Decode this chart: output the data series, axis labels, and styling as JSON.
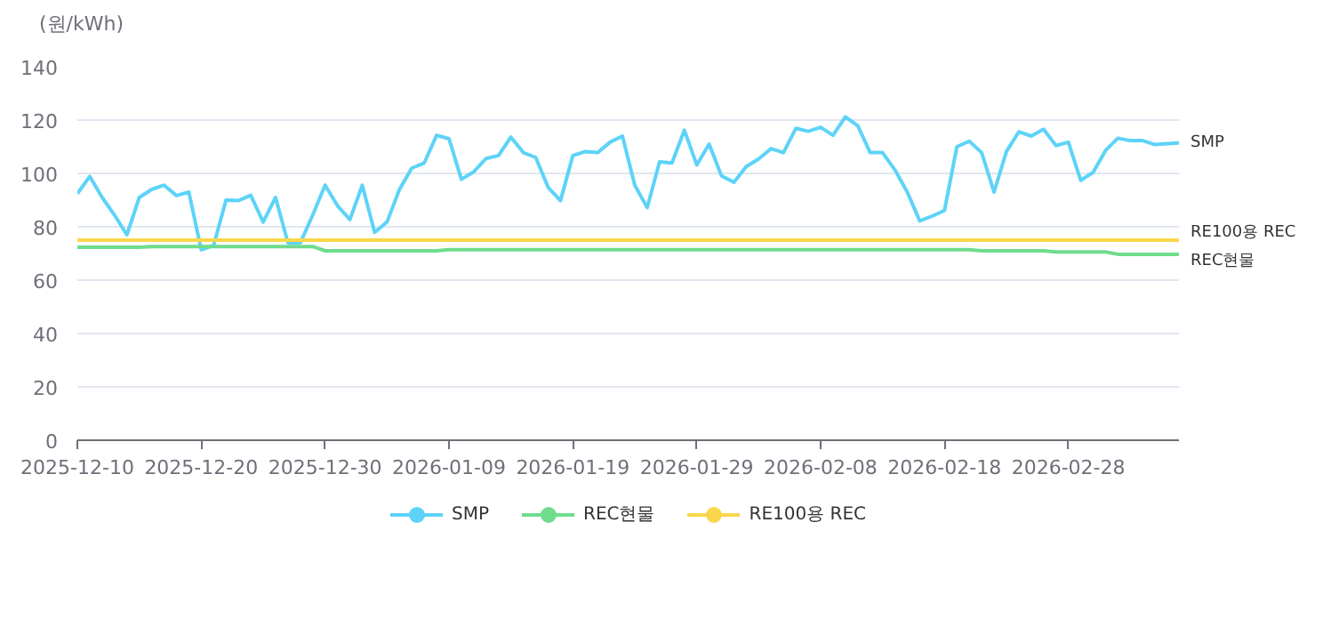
{
  "chart_data": {
    "type": "line",
    "ylabel": "(원/kWh)",
    "x": [
      "2025-12-10",
      "2025-12-11",
      "2025-12-12",
      "2025-12-13",
      "2025-12-14",
      "2025-12-15",
      "2025-12-16",
      "2025-12-17",
      "2025-12-18",
      "2025-12-19",
      "2025-12-20",
      "2025-12-21",
      "2025-12-22",
      "2025-12-23",
      "2025-12-24",
      "2025-12-25",
      "2025-12-26",
      "2025-12-27",
      "2025-12-28",
      "2025-12-29",
      "2025-12-30",
      "2025-12-31",
      "2026-01-01",
      "2026-01-02",
      "2026-01-03",
      "2026-01-04",
      "2026-01-05",
      "2026-01-06",
      "2026-01-07",
      "2026-01-08",
      "2026-01-09",
      "2026-01-10",
      "2026-01-11",
      "2026-01-12",
      "2026-01-13",
      "2026-01-14",
      "2026-01-15",
      "2026-01-16",
      "2026-01-17",
      "2026-01-18",
      "2026-01-19",
      "2026-01-20",
      "2026-01-21",
      "2026-01-22",
      "2026-01-23",
      "2026-01-24",
      "2026-01-25",
      "2026-01-26",
      "2026-01-27",
      "2026-01-28",
      "2026-01-29",
      "2026-01-30",
      "2026-01-31",
      "2026-02-01",
      "2026-02-02",
      "2026-02-03",
      "2026-02-04",
      "2026-02-05",
      "2026-02-06",
      "2026-02-07",
      "2026-02-08",
      "2026-02-09",
      "2026-02-10",
      "2026-02-11",
      "2026-02-12",
      "2026-02-13",
      "2026-02-14",
      "2026-02-15",
      "2026-02-16",
      "2026-02-17",
      "2026-02-18",
      "2026-02-19",
      "2026-02-20",
      "2026-02-21",
      "2026-02-22",
      "2026-02-23",
      "2026-02-24",
      "2026-02-25",
      "2026-02-26",
      "2026-02-27",
      "2026-02-28",
      "2026-03-01",
      "2026-03-02",
      "2026-03-03",
      "2026-03-04",
      "2026-03-05",
      "2026-03-06",
      "2026-03-07",
      "2026-03-08",
      "2026-03-09"
    ],
    "series": [
      {
        "name": "SMP",
        "color": "#5dd3f8",
        "values": [
          92.4,
          98.9,
          91,
          84.4,
          77,
          91,
          94,
          95.6,
          91.7,
          93,
          71.4,
          73,
          90,
          89.8,
          91.8,
          81.8,
          91,
          74,
          74,
          84.4,
          95.6,
          87.9,
          82.7,
          95.6,
          77.9,
          81.8,
          94,
          102,
          103.9,
          114.3,
          113,
          97.8,
          100.6,
          105.6,
          106.7,
          113.6,
          107.8,
          106,
          94.8,
          89.8,
          106.7,
          108.2,
          107.8,
          111.7,
          114,
          95.6,
          87.2,
          104.3,
          103.9,
          116.2,
          103.2,
          111,
          99.1,
          96.7,
          102.6,
          105.4,
          109.3,
          107.8,
          116.9,
          115.8,
          117.3,
          114.3,
          121.2,
          117.9,
          107.8,
          107.8,
          101.3,
          93,
          82.2,
          84,
          86.1,
          110,
          112.1,
          107.8,
          93,
          108.2,
          115.6,
          114,
          116.6,
          110.4,
          111.7,
          97.4,
          100.4,
          108.6,
          113.2,
          112.3,
          112.3,
          110.8,
          111.2,
          111.4
        ]
      },
      {
        "name": "REC현물",
        "color": "#6fdc8c",
        "values": [
          72.3,
          72.3,
          72.3,
          72.3,
          72.3,
          72.3,
          72.6,
          72.6,
          72.6,
          72.6,
          72.6,
          72.6,
          72.6,
          72.6,
          72.6,
          72.6,
          72.6,
          72.6,
          72.6,
          72.6,
          71,
          71,
          71,
          71,
          71,
          71,
          71,
          71,
          71,
          71,
          71.4,
          71.4,
          71.4,
          71.4,
          71.4,
          71.4,
          71.4,
          71.4,
          71.4,
          71.4,
          71.4,
          71.4,
          71.4,
          71.4,
          71.4,
          71.4,
          71.4,
          71.4,
          71.4,
          71.4,
          71.4,
          71.4,
          71.4,
          71.4,
          71.4,
          71.4,
          71.4,
          71.4,
          71.4,
          71.4,
          71.4,
          71.4,
          71.4,
          71.4,
          71.4,
          71.4,
          71.4,
          71.4,
          71.4,
          71.4,
          71.4,
          71.4,
          71.4,
          71,
          71,
          71,
          71,
          71,
          71,
          70.6,
          70.6,
          70.6,
          70.6,
          70.6,
          69.7,
          69.7,
          69.7,
          69.7,
          69.7,
          69.7
        ]
      },
      {
        "name": "RE100용 REC",
        "color": "#f9d64b",
        "values": [
          75,
          75,
          75,
          75,
          75,
          75,
          75,
          75,
          75,
          75,
          75,
          75,
          75,
          75,
          75,
          75,
          75,
          75,
          75,
          75,
          75,
          75,
          75,
          75,
          75,
          75,
          75,
          75,
          75,
          75,
          75,
          75,
          75,
          75,
          75,
          75,
          75,
          75,
          75,
          75,
          75,
          75,
          75,
          75,
          75,
          75,
          75,
          75,
          75,
          75,
          75,
          75,
          75,
          75,
          75,
          75,
          75,
          75,
          75,
          75,
          75,
          75,
          75,
          75,
          75,
          75,
          75,
          75,
          75,
          75,
          75,
          75,
          75,
          75,
          75,
          75,
          75,
          75,
          75,
          75,
          75,
          75,
          75,
          75,
          75,
          75,
          75,
          75,
          75,
          75
        ]
      }
    ],
    "xlim": [
      "2025-12-10",
      "2026-03-09"
    ],
    "xticks": [
      "2025-12-10",
      "2025-12-20",
      "2025-12-30",
      "2026-01-09",
      "2026-01-19",
      "2026-01-29",
      "2026-02-08",
      "2026-02-18",
      "2026-02-28"
    ],
    "ylim": [
      0,
      140
    ],
    "yticks": [
      0,
      20,
      40,
      60,
      80,
      100,
      120,
      140
    ],
    "grid": "y",
    "legend": "bottom",
    "line_style": "solid"
  }
}
